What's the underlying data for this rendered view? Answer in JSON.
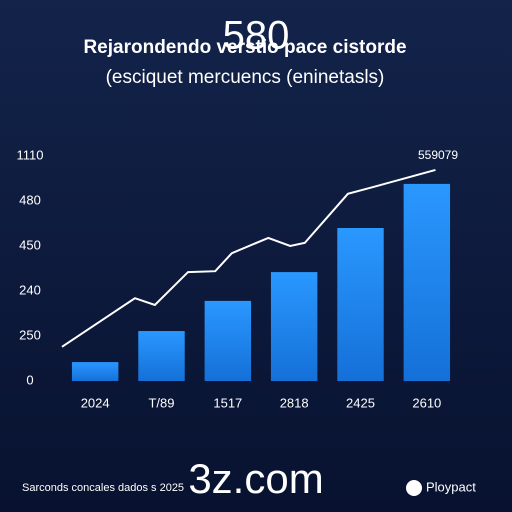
{
  "chart_data": {
    "type": "bar_line",
    "title": "Rejarondendo verstio pace cistorde",
    "subtitle": "(esciquet mercuencs (eninetasls)",
    "overlay_text": "580",
    "watermark": "3z.com",
    "footer": "Sarconds concales dados s 2025",
    "brand": "Ploypact",
    "categories": [
      "2024",
      "T/89",
      "1517",
      "2818",
      "2425",
      "2610"
    ],
    "values": [
      0.42,
      1.11,
      1.78,
      2.42,
      3.4,
      4.38
    ],
    "color": "#1f8cf2",
    "ylim": [
      0,
      5
    ],
    "yticks": [
      {
        "value": 0,
        "label": "0"
      },
      {
        "value": 1,
        "label": "250"
      },
      {
        "value": 2,
        "label": "240"
      },
      {
        "value": 3,
        "label": "450"
      },
      {
        "value": 4,
        "label": "480"
      },
      {
        "value": 5,
        "label": "1110"
      }
    ],
    "line": {
      "color": "#ffffff",
      "x": [
        0,
        0.54,
        1.1,
        1.4,
        1.9,
        2.31,
        2.56,
        3.11,
        3.44,
        3.66,
        4.31,
        4.64,
        5.63
      ],
      "values": [
        0.76,
        1.29,
        1.84,
        1.69,
        2.42,
        2.44,
        2.84,
        3.18,
        3,
        3.07,
        4.16,
        4.29,
        4.69
      ],
      "end_label": "559079"
    },
    "xlim": [
      0,
      6
    ]
  }
}
